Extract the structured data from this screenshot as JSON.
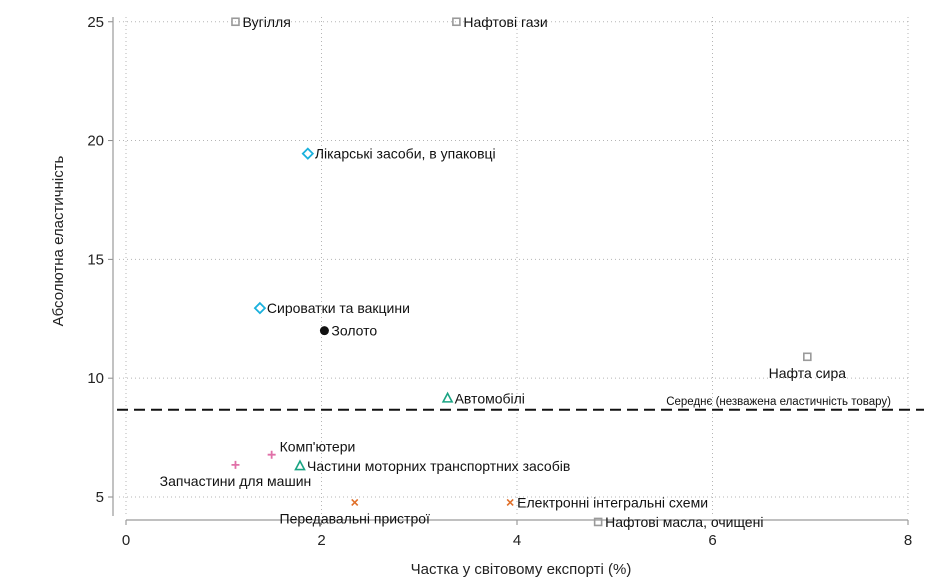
{
  "chart_data": {
    "type": "scatter",
    "title": "",
    "xlabel": "Частка у світовому експорті (%)",
    "ylabel": "Абсолютна еластичність",
    "xlim": [
      0,
      8
    ],
    "ylim": [
      4.2,
      25.2
    ],
    "xticks": [
      0,
      2,
      4,
      6,
      8
    ],
    "yticks": [
      5,
      10,
      15,
      20,
      25
    ],
    "grid": true,
    "grid_style": "dotted",
    "reference_line": {
      "y": 8.67,
      "label": "Середнє (незважена еластичність товару)",
      "style": "dashed"
    },
    "points": [
      {
        "label": "Вугілля",
        "x": 1.12,
        "y": 25.0,
        "marker": "square",
        "color": "#9a9a9a",
        "label_pos": "right"
      },
      {
        "label": "Нафтові гази",
        "x": 3.38,
        "y": 25.0,
        "marker": "square",
        "color": "#9a9a9a",
        "label_pos": "right"
      },
      {
        "label": "Лікарські засоби, в упаковці",
        "x": 1.86,
        "y": 19.45,
        "marker": "diamond",
        "color": "#1ab1dd",
        "label_pos": "right"
      },
      {
        "label": "Сироватки та вакцини",
        "x": 1.37,
        "y": 12.95,
        "marker": "diamond",
        "color": "#1ab1dd",
        "label_pos": "right"
      },
      {
        "label": "Золото",
        "x": 2.03,
        "y": 12.0,
        "marker": "circle",
        "color": "#111111",
        "label_pos": "right"
      },
      {
        "label": "Нафта сира",
        "x": 6.97,
        "y": 10.9,
        "marker": "square",
        "color": "#9a9a9a",
        "label_pos": "below"
      },
      {
        "label": "Автомобілі",
        "x": 3.29,
        "y": 9.15,
        "marker": "triangle",
        "color": "#1aa483",
        "label_pos": "right"
      },
      {
        "label": "Комп'ютери",
        "x": 1.49,
        "y": 6.78,
        "marker": "plus",
        "color": "#e070a8",
        "label_pos": "above-right"
      },
      {
        "label": "Частини моторних транспортних засобів",
        "x": 1.78,
        "y": 6.3,
        "marker": "triangle",
        "color": "#1aa483",
        "label_pos": "right"
      },
      {
        "label": "Запчастини для машин",
        "x": 1.12,
        "y": 6.35,
        "marker": "plus",
        "color": "#e070a8",
        "label_pos": "below"
      },
      {
        "label": "Електронні інтегральні схеми",
        "x": 3.93,
        "y": 4.77,
        "marker": "x",
        "color": "#e0702a",
        "label_pos": "right"
      },
      {
        "label": "Передавальні пристрої",
        "x": 2.34,
        "y": 4.77,
        "marker": "x",
        "color": "#e0702a",
        "label_pos": "below"
      },
      {
        "label": "Нафтові масла, очищені",
        "x": 4.83,
        "y": 3.95,
        "marker": "square",
        "color": "#9a9a9a",
        "label_pos": "right"
      }
    ]
  }
}
